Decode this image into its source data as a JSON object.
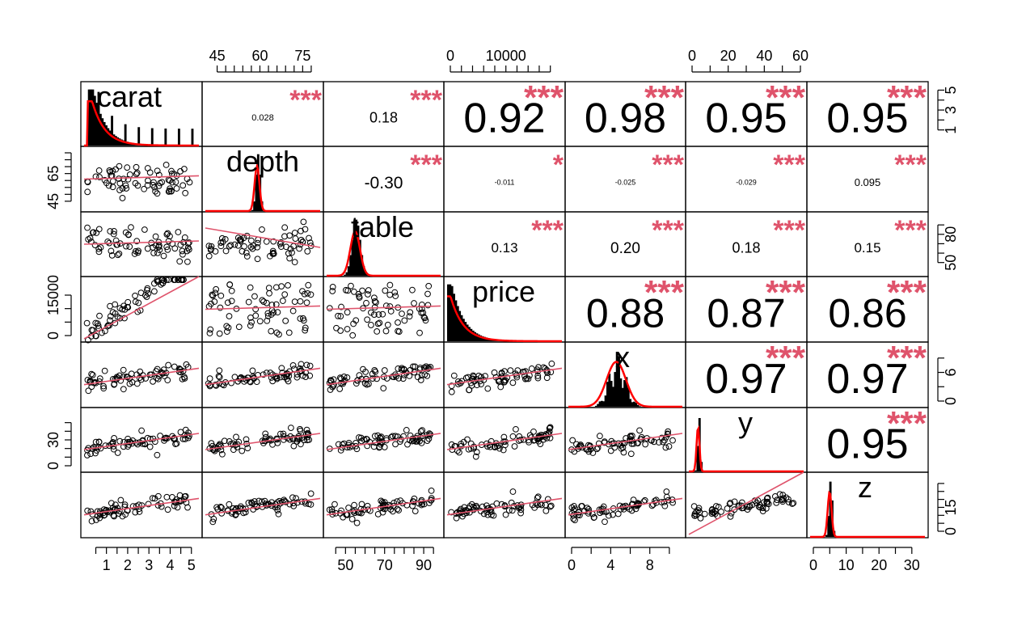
{
  "chart_data": {
    "type": "scatter",
    "title": "",
    "variables": [
      "carat",
      "depth",
      "table",
      "price",
      "x",
      "y",
      "z"
    ],
    "colors": {
      "accent": "#DF536B",
      "density": "#FF0000",
      "points": "#000000"
    },
    "upper_panels": [
      {
        "row": 0,
        "col": 1,
        "r": "0.028",
        "stars": "***",
        "size": 11
      },
      {
        "row": 0,
        "col": 2,
        "r": "0.18",
        "stars": "***",
        "size": 18
      },
      {
        "row": 0,
        "col": 3,
        "r": "0.92",
        "stars": "***",
        "size": 52
      },
      {
        "row": 0,
        "col": 4,
        "r": "0.98",
        "stars": "***",
        "size": 52
      },
      {
        "row": 0,
        "col": 5,
        "r": "0.95",
        "stars": "***",
        "size": 52
      },
      {
        "row": 0,
        "col": 6,
        "r": "0.95",
        "stars": "***",
        "size": 52
      },
      {
        "row": 1,
        "col": 2,
        "r": "-0.30",
        "stars": "***",
        "size": 21
      },
      {
        "row": 1,
        "col": 3,
        "r": "-0.011",
        "stars": "*",
        "size": 9
      },
      {
        "row": 1,
        "col": 4,
        "r": "-0.025",
        "stars": "***",
        "size": 9
      },
      {
        "row": 1,
        "col": 5,
        "r": "-0.029",
        "stars": "***",
        "size": 9
      },
      {
        "row": 1,
        "col": 6,
        "r": "0.095",
        "stars": "***",
        "size": 13
      },
      {
        "row": 2,
        "col": 3,
        "r": "0.13",
        "stars": "***",
        "size": 17
      },
      {
        "row": 2,
        "col": 4,
        "r": "0.20",
        "stars": "***",
        "size": 19
      },
      {
        "row": 2,
        "col": 5,
        "r": "0.18",
        "stars": "***",
        "size": 18
      },
      {
        "row": 2,
        "col": 6,
        "r": "0.15",
        "stars": "***",
        "size": 17
      },
      {
        "row": 3,
        "col": 4,
        "r": "0.88",
        "stars": "***",
        "size": 50
      },
      {
        "row": 3,
        "col": 5,
        "r": "0.87",
        "stars": "***",
        "size": 50
      },
      {
        "row": 3,
        "col": 6,
        "r": "0.86",
        "stars": "***",
        "size": 50
      },
      {
        "row": 4,
        "col": 5,
        "r": "0.97",
        "stars": "***",
        "size": 52
      },
      {
        "row": 4,
        "col": 6,
        "r": "0.97",
        "stars": "***",
        "size": 52
      },
      {
        "row": 5,
        "col": 6,
        "r": "0.95",
        "stars": "***",
        "size": 52
      }
    ],
    "axes": {
      "top": [
        {
          "col": 1,
          "range": [
            42,
            80
          ],
          "ticks": [
            "45",
            "60",
            "75"
          ],
          "tick_values": [
            45,
            60,
            75
          ],
          "minor": [
            45,
            48,
            51,
            54,
            57,
            60,
            63,
            66,
            69,
            72,
            75,
            78
          ]
        },
        {
          "col": 3,
          "range": [
            0,
            19500
          ],
          "ticks": [
            "0",
            "10000"
          ],
          "tick_values": [
            0,
            10000
          ],
          "minor": [
            0,
            2000,
            4000,
            6000,
            8000,
            10000,
            12000,
            14000,
            16000,
            18000
          ]
        },
        {
          "col": 5,
          "range": [
            0,
            60
          ],
          "ticks": [
            "0",
            "20",
            "40",
            "60"
          ],
          "tick_values": [
            0,
            20,
            40,
            60
          ],
          "minor": [
            0,
            10,
            20,
            30,
            40,
            50,
            60
          ]
        }
      ],
      "bottom": [
        {
          "col": 0,
          "range": [
            0.1,
            5.2
          ],
          "ticks": [
            "1",
            "2",
            "3",
            "4",
            "5"
          ],
          "tick_values": [
            1,
            2,
            3,
            4,
            5
          ],
          "minor": [
            0.5,
            1,
            1.5,
            2,
            2.5,
            3,
            3.5,
            4,
            4.5,
            5
          ]
        },
        {
          "col": 2,
          "range": [
            42,
            97
          ],
          "ticks": [
            "50",
            "70",
            "90"
          ],
          "tick_values": [
            50,
            70,
            90
          ],
          "minor": [
            45,
            50,
            55,
            60,
            65,
            70,
            75,
            80,
            85,
            90,
            95
          ]
        },
        {
          "col": 4,
          "range": [
            0,
            11
          ],
          "ticks": [
            "0",
            "4",
            "8"
          ],
          "tick_values": [
            0,
            4,
            8
          ],
          "minor": [
            0,
            2,
            4,
            6,
            8,
            10
          ]
        },
        {
          "col": 6,
          "range": [
            0,
            33
          ],
          "ticks": [
            "0",
            "10",
            "20",
            "30"
          ],
          "tick_values": [
            0,
            10,
            20,
            30
          ],
          "minor": [
            0,
            5,
            10,
            15,
            20,
            25,
            30
          ]
        }
      ],
      "left": [
        {
          "row": 1,
          "range": [
            42,
            80
          ],
          "ticks": [
            "45",
            "65"
          ],
          "tick_values": [
            45,
            65
          ],
          "minor": [
            45,
            50,
            55,
            60,
            65,
            70,
            75,
            80
          ]
        },
        {
          "row": 3,
          "range": [
            0,
            19500
          ],
          "ticks": [
            "0",
            "15000"
          ],
          "tick_values": [
            0,
            15000
          ],
          "minor": [
            0,
            5000,
            10000,
            15000
          ]
        },
        {
          "row": 5,
          "range": [
            0,
            60
          ],
          "ticks": [
            "0",
            "30"
          ],
          "tick_values": [
            0,
            30
          ],
          "minor": [
            0,
            10,
            20,
            30,
            40,
            50
          ]
        }
      ],
      "right": [
        {
          "row": 0,
          "range": [
            0,
            5.2
          ],
          "ticks": [
            "1",
            "3",
            "5"
          ],
          "tick_values": [
            1,
            3,
            5
          ],
          "minor": [
            1,
            2,
            3,
            4,
            5
          ]
        },
        {
          "row": 2,
          "range": [
            42,
            97
          ],
          "ticks": [
            "50",
            "80"
          ],
          "tick_values": [
            50,
            80
          ],
          "minor": [
            50,
            60,
            70,
            80,
            90
          ]
        },
        {
          "row": 4,
          "range": [
            0,
            11
          ],
          "ticks": [
            "0",
            "6"
          ],
          "tick_values": [
            0,
            6
          ],
          "minor": [
            0,
            3,
            6,
            9
          ]
        },
        {
          "row": 6,
          "range": [
            0,
            33
          ],
          "ticks": [
            "0",
            "15"
          ],
          "tick_values": [
            0,
            15
          ],
          "minor": [
            0,
            5,
            10,
            15,
            20,
            25,
            30
          ]
        }
      ]
    }
  }
}
